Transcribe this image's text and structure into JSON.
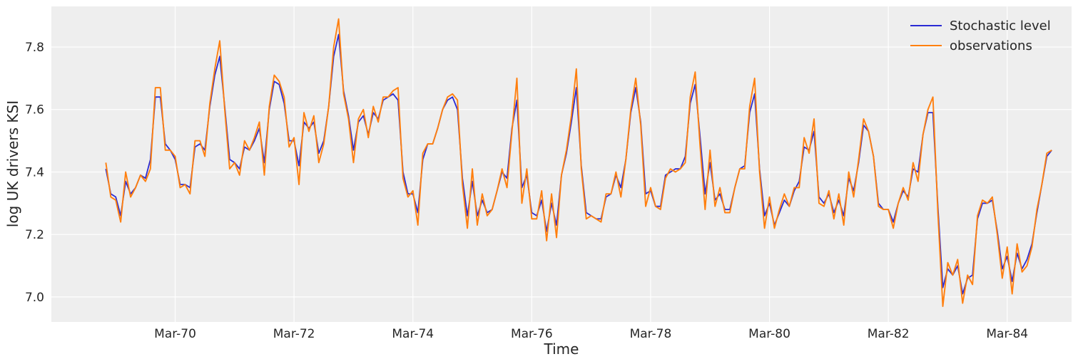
{
  "chart_data": {
    "type": "line",
    "title": "",
    "xlabel": "Time",
    "ylabel": "log UK drivers KSI",
    "x_start": "1969-01",
    "x_frequency": "monthly",
    "xlim": [
      "1968-02",
      "1985-04"
    ],
    "ylim": [
      6.92,
      7.93
    ],
    "xticks": [
      {
        "date": "1970-03",
        "label": "Mar-70"
      },
      {
        "date": "1972-03",
        "label": "Mar-72"
      },
      {
        "date": "1974-03",
        "label": "Mar-74"
      },
      {
        "date": "1976-03",
        "label": "Mar-76"
      },
      {
        "date": "1978-03",
        "label": "Mar-78"
      },
      {
        "date": "1980-03",
        "label": "Mar-80"
      },
      {
        "date": "1982-03",
        "label": "Mar-82"
      },
      {
        "date": "1984-03",
        "label": "Mar-84"
      }
    ],
    "yticks": [
      7.0,
      7.2,
      7.4,
      7.6,
      7.8
    ],
    "ytick_labels": [
      "7.0",
      "7.2",
      "7.4",
      "7.6",
      "7.8"
    ],
    "grid": true,
    "legend_position": "top-right",
    "series": [
      {
        "name": "Stochastic level",
        "color": "#2a2bd4",
        "values": [
          7.41,
          7.33,
          7.32,
          7.26,
          7.37,
          7.33,
          7.35,
          7.39,
          7.38,
          7.44,
          7.64,
          7.64,
          7.49,
          7.47,
          7.44,
          7.36,
          7.36,
          7.35,
          7.48,
          7.49,
          7.47,
          7.61,
          7.71,
          7.77,
          7.61,
          7.44,
          7.43,
          7.41,
          7.48,
          7.47,
          7.5,
          7.54,
          7.43,
          7.6,
          7.69,
          7.68,
          7.62,
          7.5,
          7.5,
          7.42,
          7.56,
          7.54,
          7.56,
          7.46,
          7.5,
          7.61,
          7.77,
          7.84,
          7.66,
          7.58,
          7.47,
          7.56,
          7.58,
          7.52,
          7.59,
          7.57,
          7.63,
          7.64,
          7.65,
          7.63,
          7.4,
          7.33,
          7.33,
          7.27,
          7.44,
          7.49,
          7.49,
          7.54,
          7.6,
          7.63,
          7.64,
          7.6,
          7.38,
          7.26,
          7.37,
          7.26,
          7.31,
          7.27,
          7.28,
          7.34,
          7.4,
          7.38,
          7.54,
          7.63,
          7.35,
          7.39,
          7.27,
          7.26,
          7.31,
          7.21,
          7.3,
          7.23,
          7.39,
          7.46,
          7.56,
          7.67,
          7.42,
          7.27,
          7.26,
          7.25,
          7.25,
          7.32,
          7.33,
          7.39,
          7.35,
          7.44,
          7.59,
          7.67,
          7.56,
          7.33,
          7.34,
          7.29,
          7.29,
          7.39,
          7.4,
          7.41,
          7.41,
          7.45,
          7.62,
          7.68,
          7.51,
          7.33,
          7.43,
          7.31,
          7.33,
          7.28,
          7.28,
          7.35,
          7.41,
          7.42,
          7.59,
          7.65,
          7.41,
          7.26,
          7.3,
          7.23,
          7.27,
          7.31,
          7.29,
          7.34,
          7.37,
          7.48,
          7.47,
          7.53,
          7.32,
          7.3,
          7.33,
          7.27,
          7.31,
          7.26,
          7.38,
          7.34,
          7.43,
          7.55,
          7.53,
          7.45,
          7.3,
          7.28,
          7.28,
          7.24,
          7.3,
          7.34,
          7.32,
          7.41,
          7.4,
          7.52,
          7.59,
          7.59,
          7.29,
          7.03,
          7.09,
          7.07,
          7.1,
          7.01,
          7.06,
          7.07,
          7.25,
          7.3,
          7.3,
          7.31,
          7.21,
          7.09,
          7.13,
          7.05,
          7.14,
          7.09,
          7.12,
          7.17,
          7.27,
          7.36,
          7.45,
          7.47
        ]
      },
      {
        "name": "observations",
        "color": "#ff7f0e",
        "values": [
          7.43,
          7.32,
          7.31,
          7.24,
          7.4,
          7.32,
          7.35,
          7.39,
          7.37,
          7.41,
          7.67,
          7.67,
          7.47,
          7.47,
          7.45,
          7.35,
          7.36,
          7.33,
          7.5,
          7.5,
          7.45,
          7.62,
          7.73,
          7.82,
          7.6,
          7.41,
          7.43,
          7.39,
          7.5,
          7.47,
          7.51,
          7.56,
          7.39,
          7.61,
          7.71,
          7.69,
          7.64,
          7.48,
          7.51,
          7.36,
          7.59,
          7.53,
          7.58,
          7.43,
          7.49,
          7.61,
          7.8,
          7.89,
          7.65,
          7.57,
          7.43,
          7.57,
          7.6,
          7.51,
          7.61,
          7.56,
          7.64,
          7.64,
          7.66,
          7.67,
          7.38,
          7.32,
          7.34,
          7.23,
          7.46,
          7.49,
          7.49,
          7.54,
          7.6,
          7.64,
          7.65,
          7.63,
          7.36,
          7.22,
          7.41,
          7.23,
          7.33,
          7.26,
          7.28,
          7.34,
          7.41,
          7.35,
          7.53,
          7.7,
          7.3,
          7.41,
          7.25,
          7.25,
          7.34,
          7.18,
          7.33,
          7.19,
          7.39,
          7.47,
          7.58,
          7.73,
          7.41,
          7.25,
          7.26,
          7.25,
          7.24,
          7.33,
          7.33,
          7.4,
          7.32,
          7.44,
          7.6,
          7.7,
          7.55,
          7.29,
          7.35,
          7.29,
          7.28,
          7.38,
          7.41,
          7.4,
          7.41,
          7.43,
          7.64,
          7.72,
          7.48,
          7.28,
          7.47,
          7.29,
          7.35,
          7.27,
          7.27,
          7.35,
          7.41,
          7.41,
          7.61,
          7.7,
          7.4,
          7.22,
          7.32,
          7.22,
          7.28,
          7.33,
          7.29,
          7.35,
          7.35,
          7.51,
          7.46,
          7.57,
          7.3,
          7.29,
          7.34,
          7.25,
          7.33,
          7.23,
          7.4,
          7.32,
          7.44,
          7.57,
          7.53,
          7.45,
          7.29,
          7.28,
          7.28,
          7.22,
          7.3,
          7.35,
          7.31,
          7.43,
          7.37,
          7.52,
          7.6,
          7.64,
          7.27,
          6.97,
          7.11,
          7.07,
          7.12,
          6.98,
          7.07,
          7.04,
          7.26,
          7.31,
          7.3,
          7.32,
          7.2,
          7.06,
          7.16,
          7.01,
          7.17,
          7.08,
          7.1,
          7.16,
          7.28,
          7.36,
          7.46,
          7.47
        ]
      }
    ]
  }
}
